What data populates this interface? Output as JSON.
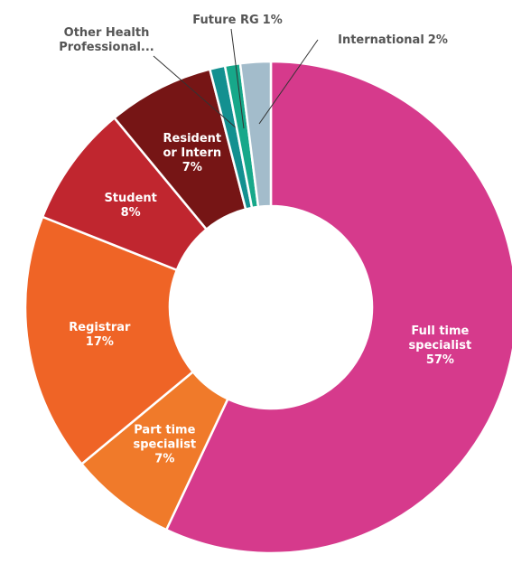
{
  "chart_data": {
    "type": "donut",
    "categories": [
      "Full time specialist",
      "Part time specialist",
      "Registrar",
      "Student",
      "Resident or Intern",
      "Other Health Professional...",
      "Future RG",
      "International"
    ],
    "values": [
      57,
      7,
      17,
      8,
      7,
      1,
      1,
      2
    ],
    "value_labels": [
      "57%",
      "7%",
      "17%",
      "8%",
      "7%",
      null,
      "1%",
      "2%"
    ],
    "colors": [
      "#d63a8c",
      "#f07a2a",
      "#ef6426",
      "#c0262f",
      "#761515",
      "#139090",
      "#17a88a",
      "#a3bccb"
    ]
  }
}
